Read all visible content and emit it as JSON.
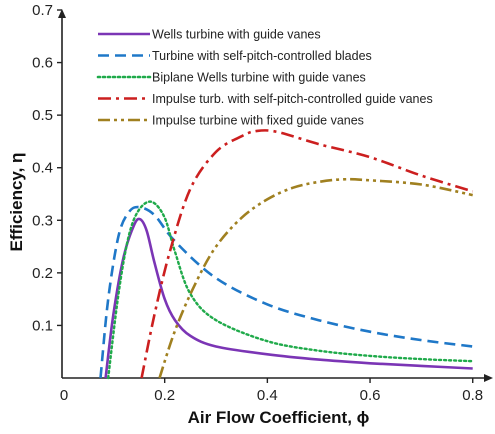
{
  "chart_data": {
    "type": "line",
    "title": "",
    "xlabel": "Air Flow Coefficient, ϕ",
    "ylabel": "Efficiency, η",
    "xlim": [
      0,
      0.82
    ],
    "ylim": [
      0,
      0.7
    ],
    "xticks": [
      0,
      0.2,
      0.4,
      0.6,
      0.8
    ],
    "xtick_labels": [
      "0",
      "0.2",
      "0.4",
      "0.6",
      "0.8"
    ],
    "yticks": [
      0.1,
      0.2,
      0.3,
      0.4,
      0.5,
      0.6,
      0.7
    ],
    "ytick_labels": [
      "0.1",
      "0.2",
      "0.3",
      "0.4",
      "0.5",
      "0.6",
      "0.7"
    ],
    "grid": false,
    "legend_position": "top-right",
    "series": [
      {
        "name": "Wells turbine with guide vanes",
        "color": "#7b35b5",
        "style": "solid",
        "points": [
          [
            0.085,
            0.0
          ],
          [
            0.1,
            0.12
          ],
          [
            0.12,
            0.23
          ],
          [
            0.14,
            0.29
          ],
          [
            0.152,
            0.302
          ],
          [
            0.165,
            0.28
          ],
          [
            0.18,
            0.22
          ],
          [
            0.2,
            0.15
          ],
          [
            0.22,
            0.11
          ],
          [
            0.25,
            0.08
          ],
          [
            0.3,
            0.06
          ],
          [
            0.4,
            0.045
          ],
          [
            0.5,
            0.035
          ],
          [
            0.6,
            0.028
          ],
          [
            0.7,
            0.023
          ],
          [
            0.8,
            0.018
          ]
        ]
      },
      {
        "name": "Turbine with self-pitch-controlled blades",
        "color": "#1f78c8",
        "style": "dashed",
        "points": [
          [
            0.075,
            0.0
          ],
          [
            0.09,
            0.15
          ],
          [
            0.11,
            0.27
          ],
          [
            0.13,
            0.315
          ],
          [
            0.15,
            0.325
          ],
          [
            0.18,
            0.31
          ],
          [
            0.22,
            0.26
          ],
          [
            0.3,
            0.19
          ],
          [
            0.4,
            0.14
          ],
          [
            0.5,
            0.11
          ],
          [
            0.6,
            0.088
          ],
          [
            0.7,
            0.072
          ],
          [
            0.8,
            0.06
          ]
        ]
      },
      {
        "name": "Biplane Wells turbine with guide vanes",
        "color": "#1faa4a",
        "style": "dotted",
        "points": [
          [
            0.09,
            0.0
          ],
          [
            0.11,
            0.16
          ],
          [
            0.13,
            0.27
          ],
          [
            0.15,
            0.32
          ],
          [
            0.175,
            0.335
          ],
          [
            0.2,
            0.305
          ],
          [
            0.22,
            0.24
          ],
          [
            0.25,
            0.16
          ],
          [
            0.3,
            0.11
          ],
          [
            0.4,
            0.07
          ],
          [
            0.5,
            0.052
          ],
          [
            0.6,
            0.042
          ],
          [
            0.7,
            0.036
          ],
          [
            0.8,
            0.032
          ]
        ]
      },
      {
        "name": "Impulse turb. with self-pitch-controlled guide vanes",
        "color": "#cc1f1f",
        "style": "dashdot",
        "points": [
          [
            0.155,
            0.0
          ],
          [
            0.18,
            0.12
          ],
          [
            0.21,
            0.24
          ],
          [
            0.25,
            0.36
          ],
          [
            0.3,
            0.43
          ],
          [
            0.35,
            0.46
          ],
          [
            0.38,
            0.47
          ],
          [
            0.42,
            0.468
          ],
          [
            0.5,
            0.445
          ],
          [
            0.6,
            0.42
          ],
          [
            0.7,
            0.385
          ],
          [
            0.8,
            0.355
          ]
        ]
      },
      {
        "name": "Impulse turbine with fixed guide vanes",
        "color": "#a08020",
        "style": "dashdotdot",
        "points": [
          [
            0.19,
            0.0
          ],
          [
            0.22,
            0.09
          ],
          [
            0.26,
            0.18
          ],
          [
            0.3,
            0.25
          ],
          [
            0.35,
            0.305
          ],
          [
            0.4,
            0.34
          ],
          [
            0.45,
            0.362
          ],
          [
            0.5,
            0.373
          ],
          [
            0.55,
            0.378
          ],
          [
            0.6,
            0.376
          ],
          [
            0.7,
            0.368
          ],
          [
            0.8,
            0.348
          ]
        ]
      }
    ]
  }
}
